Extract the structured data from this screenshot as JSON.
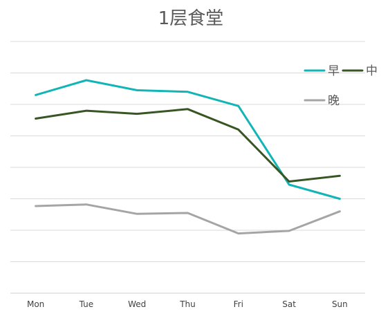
{
  "chart_data": {
    "type": "line",
    "title": "1层食堂",
    "xlabel": "",
    "ylabel": "",
    "categories": [
      "Mon",
      "Tue",
      "Wed",
      "Thu",
      "Fri",
      "Sat",
      "Sun"
    ],
    "ylim": [
      0,
      8
    ],
    "grid": true,
    "legend_position": "top-right",
    "series": [
      {
        "name": "早",
        "color": "#12b5b5",
        "values": [
          6.3,
          6.77,
          6.45,
          6.4,
          5.95,
          3.45,
          3.0
        ]
      },
      {
        "name": "中",
        "color": "#375623",
        "values": [
          5.55,
          5.8,
          5.7,
          5.85,
          5.2,
          3.55,
          3.73
        ]
      },
      {
        "name": "晚",
        "color": "#a5a5a5",
        "values": [
          2.77,
          2.82,
          2.52,
          2.55,
          1.9,
          1.98,
          2.6
        ]
      }
    ]
  }
}
